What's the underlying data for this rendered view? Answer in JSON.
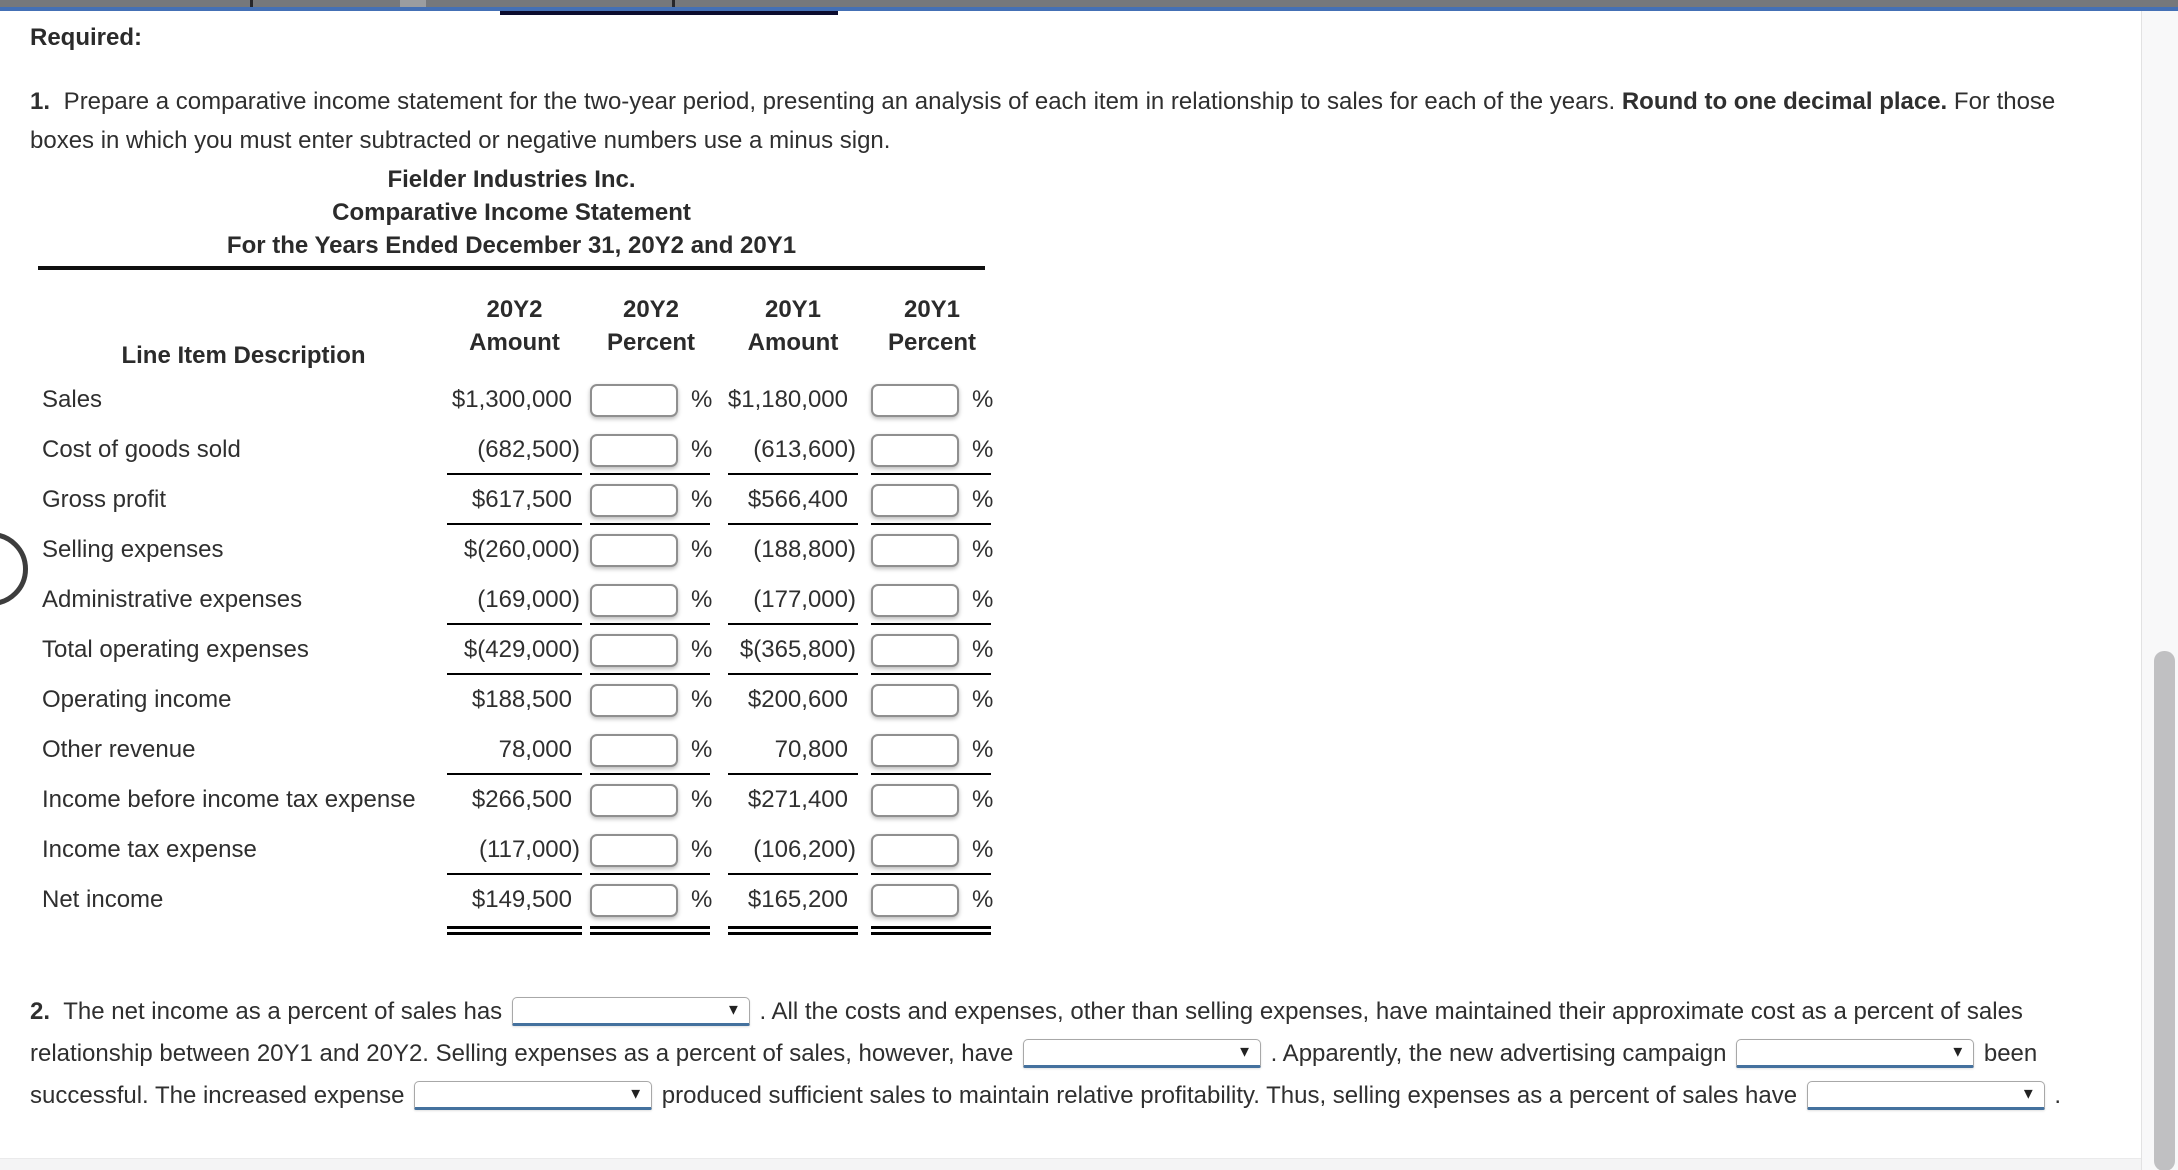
{
  "icons": {
    "dropdown_arrow": "▼"
  },
  "required_label": "Required:",
  "instruction": {
    "lines": [
      {
        "segments": [
          {
            "t": "boldnum",
            "v": "1."
          },
          {
            "t": "text",
            "v": " Prepare a comparative income statement for the two-year period, presenting an analysis of each item in relationship to sales for each of the years. "
          },
          {
            "t": "bold",
            "v": "Round to one decimal place."
          },
          {
            "t": "text",
            "v": " For those"
          }
        ]
      },
      {
        "segments": [
          {
            "t": "text",
            "v": "boxes in which you must enter subtracted or negative numbers use a minus sign."
          }
        ]
      }
    ]
  },
  "statement": {
    "company": "Fielder Industries Inc.",
    "report_title": "Comparative Income Statement",
    "period": "For the Years Ended December 31, 20Y2 and 20Y1",
    "line_item_header": "Line Item Description",
    "columns": [
      {
        "year": "20Y2",
        "type": "Amount"
      },
      {
        "year": "20Y2",
        "type": "Percent"
      },
      {
        "year": "20Y1",
        "type": "Amount"
      },
      {
        "year": "20Y1",
        "type": "Percent"
      }
    ],
    "percent_symbol": "%",
    "percent_input_value": "",
    "rows": [
      {
        "label": "Sales",
        "amount_20y2": "$1,300,000",
        "amount_20y1": "$1,180,000",
        "underline": "none"
      },
      {
        "label": "Cost of goods sold",
        "amount_20y2": "(682,500)",
        "amount_20y1": "(613,600)",
        "underline": "single"
      },
      {
        "label": "Gross profit",
        "amount_20y2": "$617,500",
        "amount_20y1": "$566,400",
        "underline": "single"
      },
      {
        "label": "Selling expenses",
        "amount_20y2": "$(260,000)",
        "amount_20y1": "(188,800)",
        "underline": "none"
      },
      {
        "label": "Administrative expenses",
        "amount_20y2": "(169,000)",
        "amount_20y1": "(177,000)",
        "underline": "single"
      },
      {
        "label": "Total operating expenses",
        "amount_20y2": "$(429,000)",
        "amount_20y1": "$(365,800)",
        "underline": "single"
      },
      {
        "label": "Operating income",
        "amount_20y2": "$188,500",
        "amount_20y1": "$200,600",
        "underline": "none"
      },
      {
        "label": "Other revenue",
        "amount_20y2": "78,000",
        "amount_20y1": "70,800",
        "underline": "single"
      },
      {
        "label": "Income before income tax expense",
        "amount_20y2": "$266,500",
        "amount_20y1": "$271,400",
        "underline": "none"
      },
      {
        "label": "Income tax expense",
        "amount_20y2": "(117,000)",
        "amount_20y1": "(106,200)",
        "underline": "single"
      },
      {
        "label": "Net income",
        "amount_20y2": "$149,500",
        "amount_20y1": "$165,200",
        "underline": "double"
      }
    ]
  },
  "analysis": {
    "lines": [
      {
        "segments": [
          {
            "t": "boldnum",
            "v": "2."
          },
          {
            "t": "text",
            "v": " The net income as a percent of sales has "
          },
          {
            "t": "select"
          },
          {
            "t": "text",
            "v": " . All the costs and expenses, other than selling expenses, have maintained their approximate cost as a percent of sales"
          }
        ]
      },
      {
        "segments": [
          {
            "t": "text",
            "v": "relationship between 20Y1 and 20Y2. Selling expenses as a percent of sales, however, have "
          },
          {
            "t": "select"
          },
          {
            "t": "text",
            "v": " . Apparently, the new advertising campaign "
          },
          {
            "t": "select"
          },
          {
            "t": "text",
            "v": " been"
          }
        ]
      },
      {
        "segments": [
          {
            "t": "text",
            "v": "successful. The increased expense "
          },
          {
            "t": "select"
          },
          {
            "t": "text",
            "v": " produced sufficient sales to maintain relative profitability. Thus, selling expenses as a percent of sales have "
          },
          {
            "t": "select"
          },
          {
            "t": "text",
            "v": " ."
          }
        ]
      }
    ]
  }
}
